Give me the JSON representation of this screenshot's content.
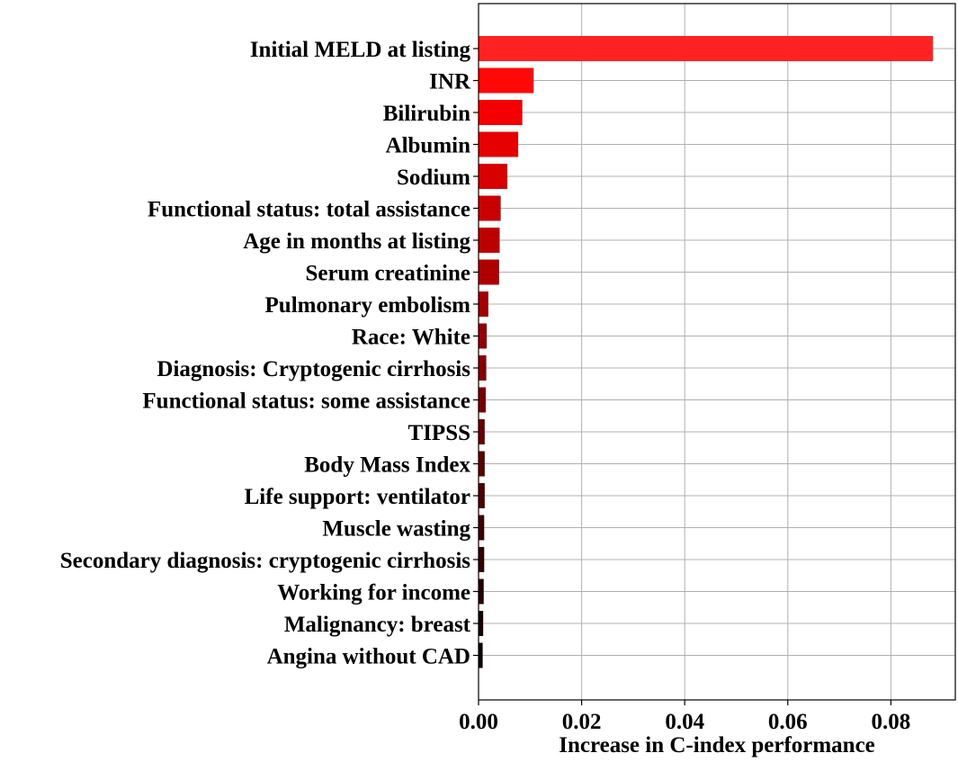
{
  "chart_data": {
    "type": "bar",
    "orientation": "horizontal",
    "xlabel": "Increase in C-index performance",
    "ylabel": "",
    "title": "",
    "xlim": [
      0.0,
      0.0925
    ],
    "xticks": [
      0.0,
      0.02,
      0.04,
      0.06,
      0.08
    ],
    "xtick_labels": [
      "0.00",
      "0.02",
      "0.04",
      "0.06",
      "0.08"
    ],
    "grid": true,
    "categories": [
      "Initial MELD at listing",
      "INR",
      "Bilirubin",
      "Albumin",
      "Sodium",
      "Functional status: total assistance",
      "Age in months at listing",
      "Serum creatinine",
      "Pulmonary embolism",
      "Race: White",
      "Diagnosis: Cryptogenic cirrhosis",
      "Functional status: some assistance",
      "TIPSS",
      "Body Mass Index",
      "Life support: ventilator",
      "Muscle wasting",
      "Secondary diagnosis: cryptogenic cirrhosis",
      "Working for income",
      "Malignancy: breast",
      "Angina without CAD"
    ],
    "values": [
      0.0882,
      0.0107,
      0.0085,
      0.0077,
      0.0056,
      0.0043,
      0.0041,
      0.004,
      0.0019,
      0.0016,
      0.0015,
      0.0014,
      0.0012,
      0.0012,
      0.0012,
      0.0011,
      0.0011,
      0.001,
      0.0009,
      0.0008
    ],
    "colors": [
      "#ff2222",
      "#ff0808",
      "#f40000",
      "#e60000",
      "#d80000",
      "#ca0000",
      "#bc0000",
      "#ae0000",
      "#a00000",
      "#920000",
      "#840000",
      "#760000",
      "#680000",
      "#5a0000",
      "#4c0000",
      "#3e0000",
      "#300000",
      "#240000",
      "#180000",
      "#0c0000"
    ]
  }
}
